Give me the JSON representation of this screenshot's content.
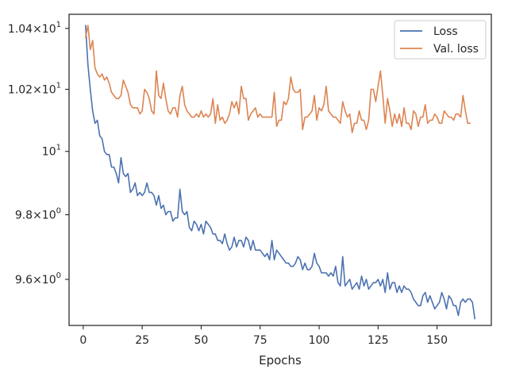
{
  "chart_data": {
    "type": "line",
    "title": "",
    "xlabel": "Epochs",
    "ylabel": "",
    "xlim": [
      -6,
      173
    ],
    "ylim": [
      9.46,
      10.447
    ],
    "y_scale": "log",
    "grid": false,
    "legend_position": "top-right",
    "x_ticks": [
      0,
      25,
      50,
      75,
      100,
      125,
      150
    ],
    "y_ticks": [
      {
        "value": 9.6,
        "mantissa": "9.6",
        "base": "10",
        "exp": "0"
      },
      {
        "value": 9.8,
        "mantissa": "9.8",
        "base": "10",
        "exp": "0"
      },
      {
        "value": 10.0,
        "mantissa": "",
        "base": "10",
        "exp": "1"
      },
      {
        "value": 10.2,
        "mantissa": "1.02",
        "base": "10",
        "exp": "1"
      },
      {
        "value": 10.4,
        "mantissa": "1.04",
        "base": "10",
        "exp": "1"
      }
    ],
    "series": [
      {
        "name": "Loss",
        "color": "#4c72b0",
        "x_start": 1,
        "values": [
          10.41,
          10.28,
          10.2,
          10.13,
          10.09,
          10.1,
          10.05,
          10.04,
          10.0,
          9.99,
          9.99,
          9.95,
          9.95,
          9.93,
          9.9,
          9.98,
          9.93,
          9.92,
          9.93,
          9.87,
          9.88,
          9.9,
          9.86,
          9.87,
          9.86,
          9.87,
          9.9,
          9.87,
          9.87,
          9.86,
          9.83,
          9.86,
          9.82,
          9.83,
          9.8,
          9.81,
          9.81,
          9.78,
          9.79,
          9.79,
          9.88,
          9.81,
          9.8,
          9.81,
          9.76,
          9.75,
          9.78,
          9.77,
          9.75,
          9.77,
          9.74,
          9.78,
          9.77,
          9.76,
          9.74,
          9.74,
          9.72,
          9.72,
          9.71,
          9.74,
          9.71,
          9.69,
          9.7,
          9.73,
          9.7,
          9.72,
          9.72,
          9.7,
          9.73,
          9.72,
          9.69,
          9.72,
          9.69,
          9.69,
          9.69,
          9.68,
          9.67,
          9.68,
          9.66,
          9.72,
          9.66,
          9.69,
          9.68,
          9.67,
          9.66,
          9.65,
          9.65,
          9.64,
          9.64,
          9.65,
          9.67,
          9.66,
          9.63,
          9.65,
          9.63,
          9.63,
          9.64,
          9.68,
          9.65,
          9.64,
          9.62,
          9.62,
          9.62,
          9.61,
          9.62,
          9.61,
          9.64,
          9.59,
          9.58,
          9.67,
          9.58,
          9.59,
          9.6,
          9.57,
          9.58,
          9.59,
          9.57,
          9.61,
          9.58,
          9.6,
          9.57,
          9.58,
          9.59,
          9.59,
          9.6,
          9.58,
          9.6,
          9.56,
          9.62,
          9.57,
          9.59,
          9.59,
          9.56,
          9.58,
          9.56,
          9.58,
          9.57,
          9.57,
          9.56,
          9.54,
          9.53,
          9.52,
          9.52,
          9.55,
          9.56,
          9.53,
          9.55,
          9.53,
          9.51,
          9.52,
          9.53,
          9.56,
          9.54,
          9.51,
          9.55,
          9.54,
          9.52,
          9.52,
          9.49,
          9.53,
          9.54,
          9.53,
          9.54,
          9.54,
          9.53,
          9.48
        ]
      },
      {
        "name": "Val. loss",
        "color": "#dd8452",
        "x_start": 1,
        "values": [
          10.37,
          10.41,
          10.33,
          10.36,
          10.27,
          10.25,
          10.24,
          10.25,
          10.23,
          10.24,
          10.22,
          10.19,
          10.18,
          10.17,
          10.17,
          10.18,
          10.23,
          10.21,
          10.19,
          10.15,
          10.14,
          10.14,
          10.14,
          10.12,
          10.13,
          10.2,
          10.19,
          10.17,
          10.13,
          10.12,
          10.26,
          10.18,
          10.17,
          10.22,
          10.17,
          10.13,
          10.12,
          10.14,
          10.14,
          10.11,
          10.18,
          10.21,
          10.15,
          10.13,
          10.12,
          10.11,
          10.11,
          10.12,
          10.11,
          10.13,
          10.11,
          10.12,
          10.11,
          10.12,
          10.17,
          10.09,
          10.15,
          10.1,
          10.11,
          10.09,
          10.1,
          10.12,
          10.16,
          10.14,
          10.16,
          10.12,
          10.21,
          10.17,
          10.17,
          10.1,
          10.12,
          10.13,
          10.14,
          10.11,
          10.12,
          10.11,
          10.11,
          10.11,
          10.11,
          10.11,
          10.19,
          10.08,
          10.1,
          10.1,
          10.16,
          10.15,
          10.17,
          10.24,
          10.2,
          10.19,
          10.19,
          10.2,
          10.07,
          10.11,
          10.11,
          10.12,
          10.13,
          10.18,
          10.1,
          10.14,
          10.13,
          10.15,
          10.21,
          10.13,
          10.12,
          10.11,
          10.11,
          10.1,
          10.09,
          10.16,
          10.13,
          10.11,
          10.12,
          10.06,
          10.09,
          10.09,
          10.13,
          10.1,
          10.1,
          10.07,
          10.1,
          10.2,
          10.2,
          10.16,
          10.21,
          10.26,
          10.18,
          10.09,
          10.17,
          10.13,
          10.08,
          10.12,
          10.09,
          10.12,
          10.08,
          10.14,
          10.09,
          10.09,
          10.07,
          10.13,
          10.12,
          10.08,
          10.11,
          10.11,
          10.15,
          10.09,
          10.1,
          10.1,
          10.12,
          10.11,
          10.09,
          10.09,
          10.13,
          10.12,
          10.11,
          10.11,
          10.1,
          10.12,
          10.12,
          10.11,
          10.18,
          10.13,
          10.09,
          10.09
        ]
      }
    ]
  }
}
